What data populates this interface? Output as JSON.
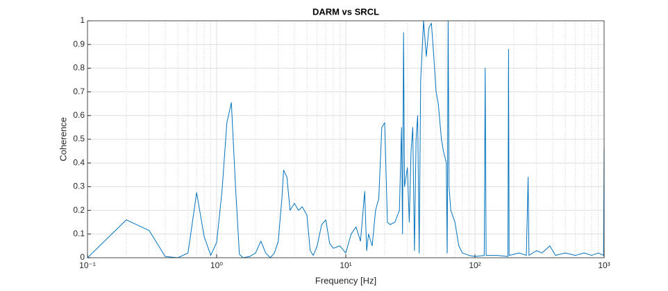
{
  "chart_data": {
    "type": "line",
    "title": "DARM vs SRCL",
    "xlabel": "Frequency [Hz]",
    "ylabel": "Coherence",
    "xscale": "log",
    "grid": true,
    "color": "#0072bd",
    "xlim": [
      0.1,
      1000
    ],
    "ylim": [
      0,
      1
    ],
    "xticks": [
      {
        "value": 0.1,
        "label": "10⁻¹"
      },
      {
        "value": 1,
        "label": "10⁰"
      },
      {
        "value": 10,
        "label": "10¹"
      },
      {
        "value": 100,
        "label": "10²"
      },
      {
        "value": 1000,
        "label": "10³"
      }
    ],
    "yticks": [
      0,
      0.1,
      0.2,
      0.3,
      0.4,
      0.5,
      0.6,
      0.7,
      0.8,
      0.9,
      1
    ],
    "x": [
      0.1,
      0.2,
      0.3,
      0.4,
      0.5,
      0.6,
      0.7,
      0.8,
      0.9,
      1.0,
      1.1,
      1.2,
      1.3,
      1.4,
      1.5,
      1.6,
      1.8,
      2.0,
      2.2,
      2.4,
      2.6,
      2.8,
      3.0,
      3.2,
      3.3,
      3.5,
      3.7,
      4.0,
      4.3,
      4.6,
      5.0,
      5.3,
      5.6,
      6.0,
      6.5,
      7.0,
      7.5,
      8.0,
      9.0,
      10,
      11,
      12,
      13,
      14,
      14.5,
      15,
      16,
      17,
      18,
      19,
      20,
      21,
      22,
      24,
      26,
      27,
      27.5,
      28,
      28.5,
      30,
      31,
      32,
      33,
      34,
      35,
      36,
      37,
      38,
      40,
      42,
      44,
      46,
      48,
      50,
      52,
      55,
      57,
      60,
      61,
      62,
      63,
      65,
      70,
      75,
      80,
      90,
      100,
      118,
      120,
      122,
      150,
      180,
      182,
      184,
      220,
      250,
      258,
      262,
      300,
      330,
      380,
      420,
      500,
      600,
      700,
      800,
      900,
      990,
      1000
    ],
    "values": [
      0,
      0.16,
      0.115,
      0.005,
      0,
      0.02,
      0.275,
      0.09,
      0.01,
      0.065,
      0.28,
      0.57,
      0.655,
      0.3,
      0.015,
      0,
      0.005,
      0.02,
      0.07,
      0.02,
      0,
      0.02,
      0.07,
      0.25,
      0.37,
      0.34,
      0.2,
      0.23,
      0.2,
      0.215,
      0.18,
      0.03,
      0.01,
      0.05,
      0.14,
      0.16,
      0.06,
      0.04,
      0.05,
      0.02,
      0.1,
      0.13,
      0.07,
      0.28,
      0.03,
      0.1,
      0.05,
      0.2,
      0.25,
      0.55,
      0.57,
      0.15,
      0.14,
      0.15,
      0.2,
      0.55,
      0.1,
      0.95,
      0.3,
      0.38,
      0.15,
      0.45,
      0.55,
      0.03,
      0.5,
      0.6,
      0.02,
      0.75,
      1.0,
      0.85,
      0.97,
      0.99,
      0.85,
      0.7,
      0.65,
      0.5,
      0.45,
      0.4,
      0.02,
      1.0,
      0.3,
      0.2,
      0.15,
      0.05,
      0.02,
      0.01,
      0.005,
      0.01,
      0.8,
      0.01,
      0.01,
      0.005,
      0.88,
      0.01,
      0.02,
      0.01,
      0.34,
      0.01,
      0.03,
      0.02,
      0.05,
      0.01,
      0.02,
      0.01,
      0.02,
      0.01,
      0.02,
      0.01,
      0.46
    ]
  }
}
